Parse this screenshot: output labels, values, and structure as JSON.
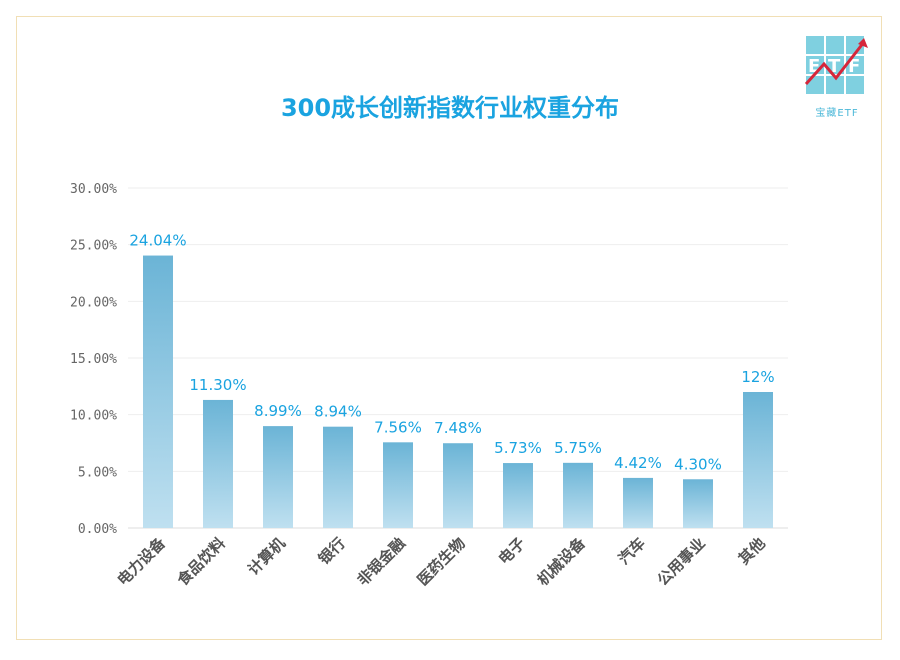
{
  "logo": {
    "mark": "ETF",
    "text": "宝藏ETF",
    "colors": {
      "tile": "#7fd0e0",
      "arrow": "#d6263a"
    }
  },
  "chart_data": {
    "type": "bar",
    "title": "300成长创新指数行业权重分布",
    "xlabel": "",
    "ylabel": "",
    "ylim": [
      0,
      30
    ],
    "yticks": [
      "0.00%",
      "5.00%",
      "10.00%",
      "15.00%",
      "20.00%",
      "25.00%",
      "30.00%"
    ],
    "ytick_values": [
      0,
      5,
      10,
      15,
      20,
      25,
      30
    ],
    "categories": [
      "电力设备",
      "食品饮料",
      "计算机",
      "银行",
      "非银金融",
      "医药生物",
      "电子",
      "机械设备",
      "汽车",
      "公用事业",
      "其他"
    ],
    "values": [
      24.04,
      11.3,
      8.99,
      8.94,
      7.56,
      7.48,
      5.73,
      5.75,
      4.42,
      4.3,
      12
    ],
    "data_labels": [
      "24.04%",
      "11.30%",
      "8.99%",
      "8.94%",
      "7.56%",
      "7.48%",
      "5.73%",
      "5.75%",
      "4.42%",
      "4.30%",
      "12%"
    ],
    "grid": true,
    "colors": {
      "bar_top": "#6bb4d6",
      "bar_bottom": "#bfe0f0",
      "label": "#1aa3e0",
      "grid": "#eeeeee"
    }
  }
}
